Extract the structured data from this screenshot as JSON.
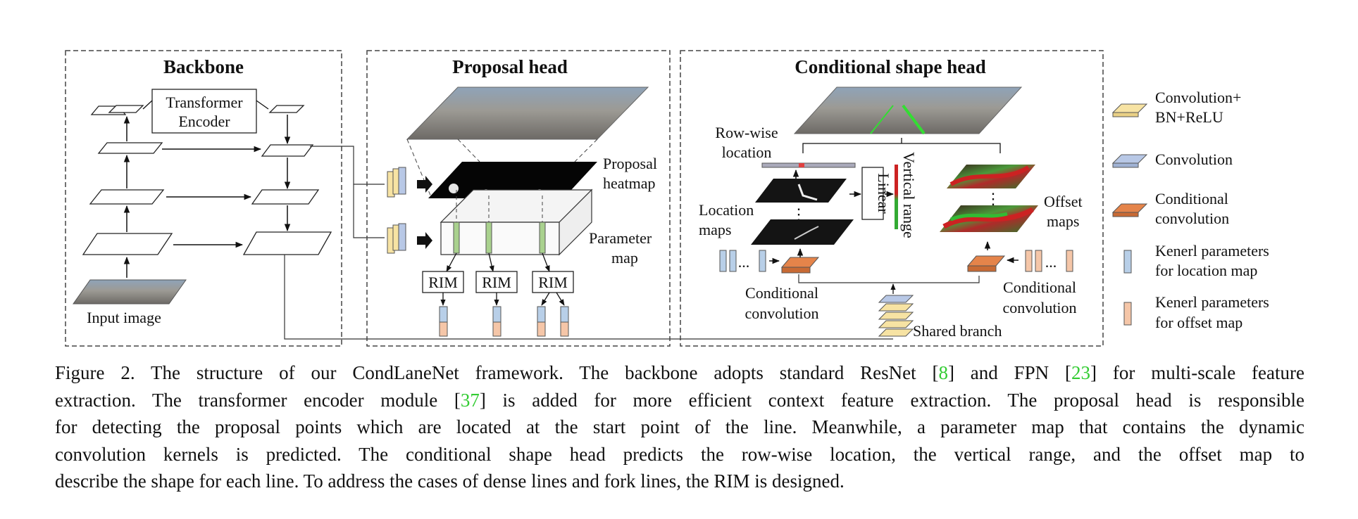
{
  "figure": {
    "backbone": {
      "title": "Backbone",
      "transformer_line1": "Transformer",
      "transformer_line2": "Encoder",
      "input_image": "Input image"
    },
    "proposal_head": {
      "title": "Proposal head",
      "heatmap_line1": "Proposal",
      "heatmap_line2": "heatmap",
      "param_line1": "Parameter",
      "param_line2": "map",
      "rim": "RIM"
    },
    "shape_head": {
      "title": "Conditional shape head",
      "rowwise_line1": "Row-wise",
      "rowwise_line2": "location",
      "location_line1": "Location",
      "location_line2": "maps",
      "linear": "Linear",
      "vertical_range": "Vertical range",
      "offset_line1": "Offset",
      "offset_line2": "maps",
      "condconv_line1": "Conditional",
      "condconv_line2": "convolution",
      "shared_branch": "Shared branch",
      "dots": "...",
      "vdots": "⋮"
    },
    "legend": {
      "conv_bn_relu_line1": "Convolution+",
      "conv_bn_relu_line2": "BN+ReLU",
      "convolution": "Convolution",
      "cond_conv_line1": "Conditional",
      "cond_conv_line2": "convolution",
      "kernel_loc_line1": "Kenerl parameters",
      "kernel_loc_line2": "for location map",
      "kernel_off_line1": "Kenerl parameters",
      "kernel_off_line2": "for offset map"
    },
    "colors": {
      "conv_bn_relu": "#f7e3a3",
      "convolution": "#b8c8e6",
      "cond_conv": "#e5844a",
      "kernel_loc": "#b8cfe8",
      "kernel_off": "#f5c6a8",
      "param_green": "#a9d18e",
      "reference": "#33cc33"
    }
  },
  "caption": {
    "l1_a": "Figure 2. The structure of our CondLaneNet framework.  The backbone adopts standard ResNet [",
    "ref1": "8",
    "l1_b": "] and FPN [",
    "ref2": "23",
    "l1_c": "] for multi-scale feature",
    "l2_a": "extraction. The transformer encoder module [",
    "ref3": "37",
    "l2_b": "] is added for more efficient context feature extraction. The proposal head is responsible",
    "l3": "for detecting the proposal points which are located at the start point of the line. Meanwhile, a parameter map that contains the dynamic",
    "l4": "convolution kernels is predicted.  The conditional shape head predicts the row-wise location, the vertical range, and the offset map to",
    "l5": "describe the shape for each line. To address the cases of dense lines and fork lines, the RIM is designed."
  }
}
